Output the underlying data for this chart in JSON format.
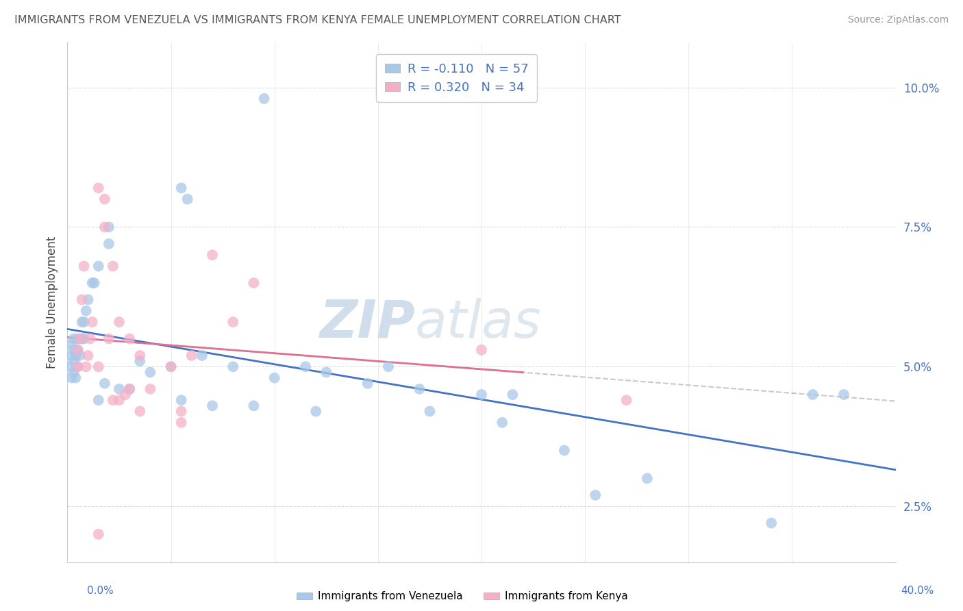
{
  "title": "IMMIGRANTS FROM VENEZUELA VS IMMIGRANTS FROM KENYA FEMALE UNEMPLOYMENT CORRELATION CHART",
  "source": "Source: ZipAtlas.com",
  "ylabel": "Female Unemployment",
  "y_ticks": [
    2.5,
    5.0,
    7.5,
    10.0
  ],
  "y_tick_labels": [
    "2.5%",
    "5.0%",
    "7.5%",
    "10.0%"
  ],
  "x_min": 0.0,
  "x_max": 40.0,
  "y_min": 1.5,
  "y_max": 10.8,
  "R_venezuela": -0.11,
  "N_venezuela": 57,
  "R_kenya": 0.32,
  "N_kenya": 34,
  "color_venezuela": "#a8c8e8",
  "color_kenya": "#f4b0c8",
  "color_venezuela_line": "#4472c4",
  "color_kenya_line": "#e07090",
  "watermark_ZIP": "ZIP",
  "watermark_atlas": "atlas",
  "legend_labels": [
    "Immigrants from Venezuela",
    "Immigrants from Kenya"
  ],
  "venezuela_scatter_x": [
    9.5,
    5.5,
    5.8,
    2.0,
    2.0,
    1.5,
    1.3,
    1.2,
    1.0,
    0.9,
    0.8,
    0.8,
    0.7,
    0.7,
    0.6,
    0.5,
    0.5,
    0.5,
    0.4,
    0.4,
    0.3,
    0.3,
    0.3,
    0.3,
    0.2,
    0.2,
    0.2,
    0.2,
    3.5,
    4.0,
    5.0,
    6.5,
    8.0,
    10.0,
    11.5,
    12.5,
    14.5,
    15.5,
    17.0,
    20.0,
    21.5,
    3.0,
    2.5,
    1.8,
    1.5,
    5.5,
    7.0,
    9.0,
    12.0,
    17.5,
    21.0,
    24.0,
    25.5,
    28.0,
    34.0,
    36.0,
    37.5
  ],
  "venezuela_scatter_y": [
    9.8,
    8.2,
    8.0,
    7.5,
    7.2,
    6.8,
    6.5,
    6.5,
    6.2,
    6.0,
    5.8,
    5.5,
    5.8,
    5.5,
    5.2,
    5.5,
    5.3,
    5.0,
    5.2,
    4.8,
    5.5,
    5.3,
    5.1,
    4.9,
    5.4,
    5.2,
    5.0,
    4.8,
    5.1,
    4.9,
    5.0,
    5.2,
    5.0,
    4.8,
    5.0,
    4.9,
    4.7,
    5.0,
    4.6,
    4.5,
    4.5,
    4.6,
    4.6,
    4.7,
    4.4,
    4.4,
    4.3,
    4.3,
    4.2,
    4.2,
    4.0,
    3.5,
    2.7,
    3.0,
    2.2,
    4.5,
    4.5
  ],
  "kenya_scatter_x": [
    0.5,
    0.5,
    0.6,
    0.7,
    0.8,
    0.9,
    1.0,
    1.1,
    1.2,
    1.5,
    1.5,
    1.8,
    1.8,
    2.0,
    2.2,
    2.5,
    3.0,
    3.5,
    4.0,
    5.0,
    5.5,
    6.0,
    7.0,
    8.0,
    3.0,
    2.8,
    2.2,
    2.5,
    3.5,
    5.5,
    9.0,
    20.0,
    27.0,
    1.5
  ],
  "kenya_scatter_y": [
    5.3,
    5.0,
    5.5,
    6.2,
    6.8,
    5.0,
    5.2,
    5.5,
    5.8,
    8.2,
    5.0,
    8.0,
    7.5,
    5.5,
    6.8,
    5.8,
    5.5,
    5.2,
    4.6,
    5.0,
    4.2,
    5.2,
    7.0,
    5.8,
    4.6,
    4.5,
    4.4,
    4.4,
    4.2,
    4.0,
    6.5,
    5.3,
    4.4,
    2.0
  ]
}
